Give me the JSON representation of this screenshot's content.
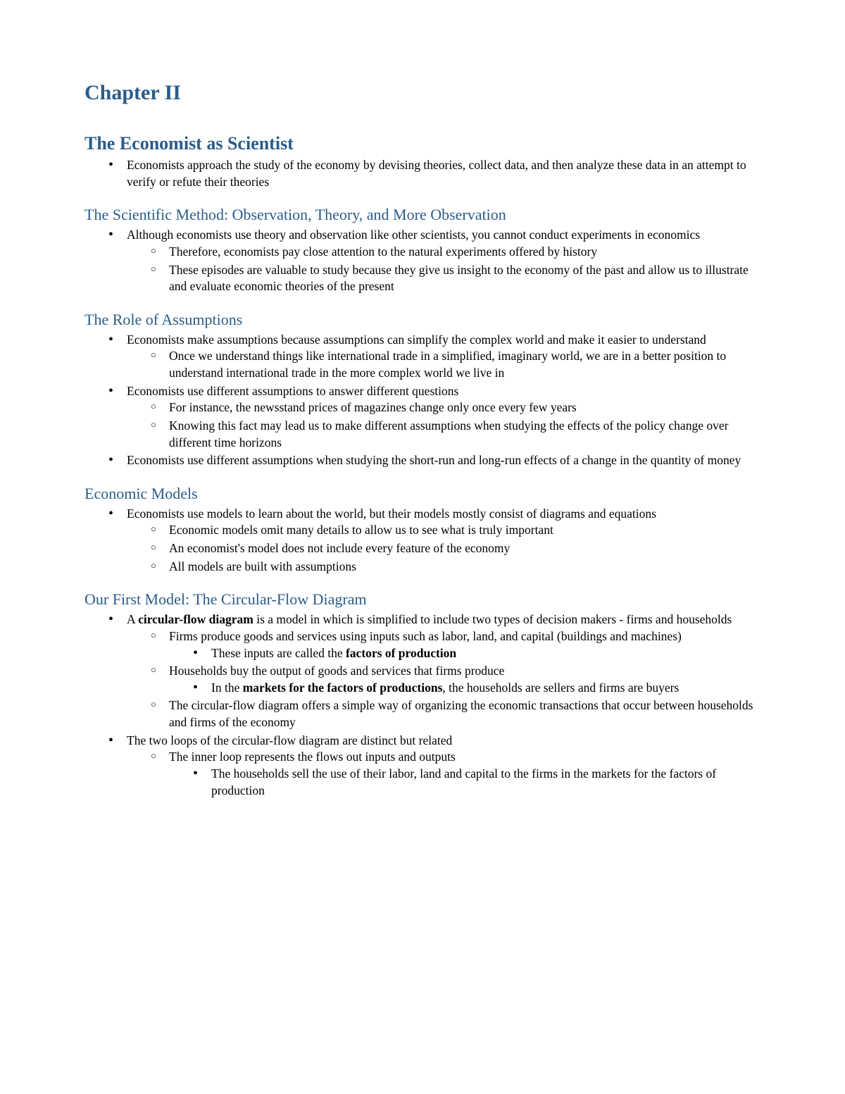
{
  "chapter_title": "Chapter II",
  "sections": {
    "s1": {
      "heading": "The Economist as Scientist",
      "b1": "Economists approach the study of the economy by devising theories, collect data, and then analyze these data in an attempt to verify or refute their theories"
    },
    "s2": {
      "heading": "The Scientific Method: Observation, Theory, and More Observation",
      "b1": "Although economists use theory and observation like other scientists, you cannot conduct experiments in economics",
      "b1_1": "Therefore, economists pay close attention to the natural experiments offered by history",
      "b1_2": "These episodes are valuable to study because they give us insight to the economy of the past and allow us to illustrate and evaluate economic theories of the present"
    },
    "s3": {
      "heading": "The Role of Assumptions",
      "b1": "Economists make assumptions because assumptions can simplify the complex world and make it easier to understand",
      "b1_1": "Once we understand things like international trade in a simplified, imaginary world, we are in a better position to understand international trade in the more complex world we live in",
      "b2": "Economists use different assumptions to answer different questions",
      "b2_1": "For instance, the newsstand prices of magazines change only once every few years",
      "b2_2": "Knowing this fact may lead us to make different assumptions when studying the effects of the policy change over different time horizons",
      "b3": "Economists use different assumptions when studying the short-run and long-run effects of a change in the quantity of money"
    },
    "s4": {
      "heading": "Economic Models",
      "b1": "Economists use models to learn about the world, but their models mostly consist of diagrams and equations",
      "b1_1": "Economic models omit many details to allow us to see what is truly important",
      "b1_2": "An economist's model does not include every feature of the economy",
      "b1_3": "All models are built with assumptions"
    },
    "s5": {
      "heading": "Our First Model: The Circular-Flow Diagram",
      "b1_pre": "A ",
      "b1_bold": "circular-flow diagram",
      "b1_post": " is a model in which is simplified to include two types of decision makers - firms and households",
      "b1_1": "Firms produce goods and services using inputs such as labor, land, and capital (buildings and machines)",
      "b1_1_1_pre": "These inputs are called the ",
      "b1_1_1_bold": "factors of production",
      "b1_2": "Households buy the output of goods and services that firms produce",
      "b1_2_1_pre": "In the ",
      "b1_2_1_bold": "markets for the factors of productions",
      "b1_2_1_post": ", the households are sellers and firms are buyers",
      "b1_3": "The circular-flow diagram offers a simple way of organizing the economic transactions that occur between households and firms of the economy",
      "b2": "The two loops of the circular-flow diagram are distinct but related",
      "b2_1": "The inner loop represents the flows out inputs and outputs",
      "b2_1_1": "The households sell the use of their labor, land and capital to the firms in the markets for the factors of production"
    }
  },
  "colors": {
    "heading": "#2a5c8a",
    "text": "#000000",
    "background": "#ffffff"
  }
}
